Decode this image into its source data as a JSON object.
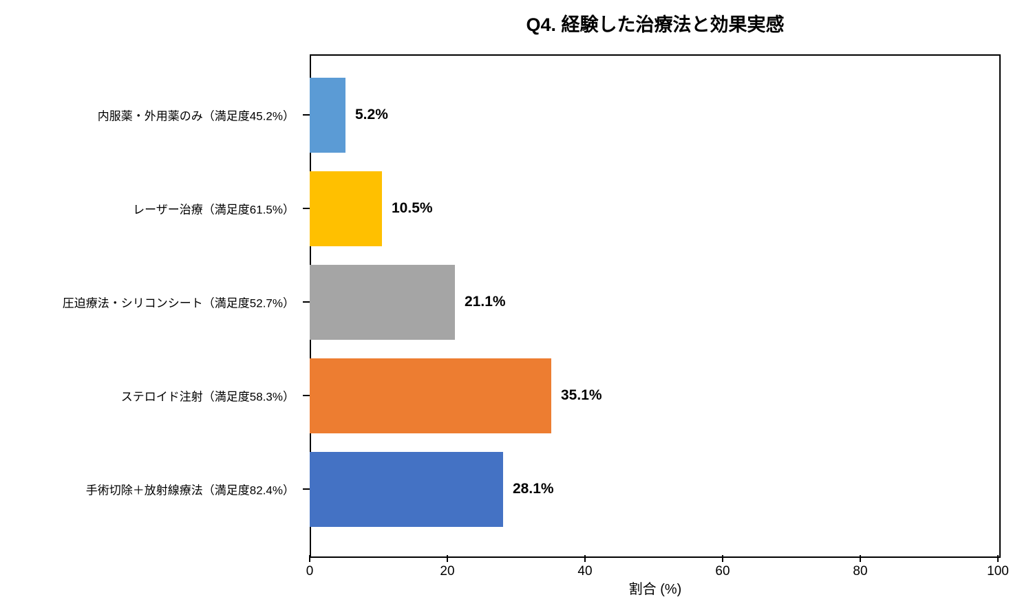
{
  "chart_data": {
    "type": "bar",
    "orientation": "horizontal",
    "title": "Q4. 経験した治療法と効果実感",
    "xlabel": "割合 (%)",
    "ylabel": "",
    "xlim": [
      0,
      100
    ],
    "x_ticks": [
      "0",
      "20",
      "40",
      "60",
      "80",
      "100"
    ],
    "grid": false,
    "legend": null,
    "categories": [
      "内服薬・外用薬のみ（満足度45.2%）",
      "レーザー治療（満足度61.5%）",
      "圧迫療法・シリコンシート（満足度52.7%）",
      "ステロイド注射（満足度58.3%）",
      "手術切除＋放射線療法（満足度82.4%）"
    ],
    "values": [
      5.2,
      10.5,
      21.1,
      35.1,
      28.1
    ],
    "value_labels": [
      "5.2%",
      "10.5%",
      "21.1%",
      "35.1%",
      "28.1%"
    ],
    "bar_colors": [
      "#5B9BD5",
      "#FFC000",
      "#A5A5A5",
      "#ED7D31",
      "#4472C4"
    ],
    "axis_color": "#000000",
    "background_color": "#FFFFFF"
  }
}
